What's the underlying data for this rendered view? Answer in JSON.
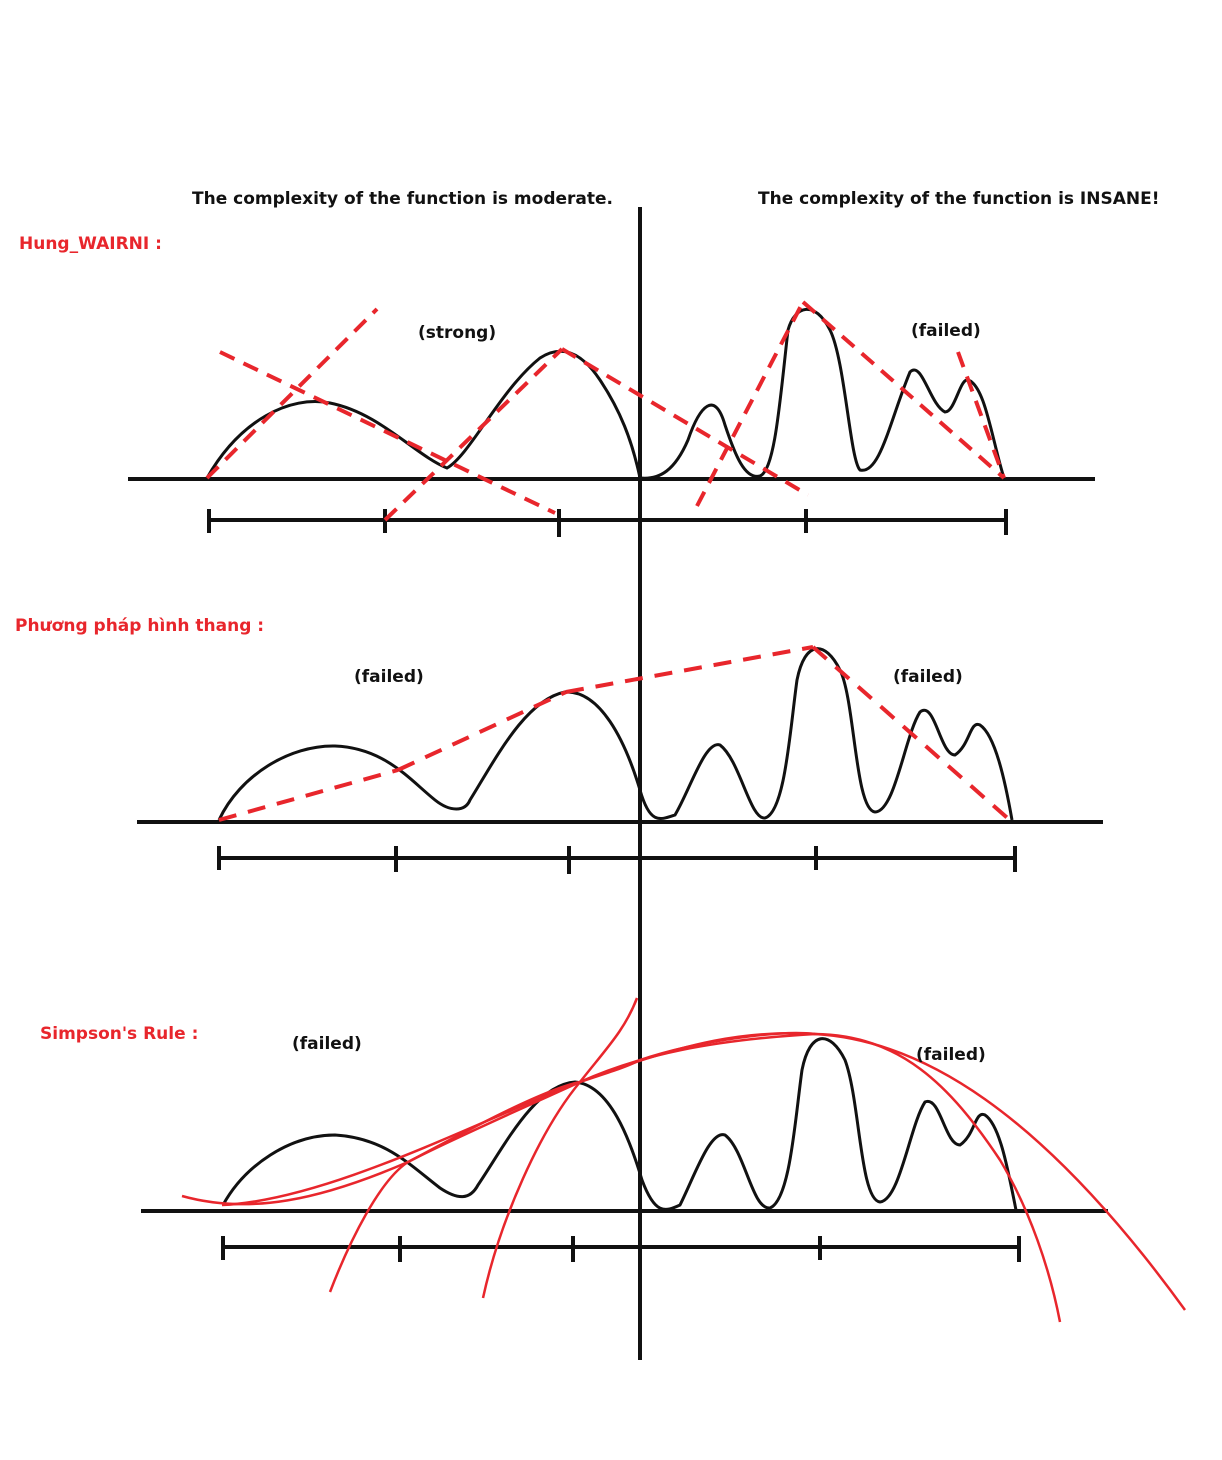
{
  "headers": {
    "left": "The complexity of the function is moderate.",
    "right": "The complexity of the function is INSANE!"
  },
  "methods": [
    {
      "name": "Hung_WAIRNI :",
      "verdict_left": "(strong)",
      "verdict_right": "(failed)"
    },
    {
      "name": "Phương pháp hình thang :",
      "verdict_left": "(failed)",
      "verdict_right": "(failed)"
    },
    {
      "name": "Simpson's Rule :",
      "verdict_left": "(failed)",
      "verdict_right": "(failed)"
    }
  ],
  "colors": {
    "curve": "#111111",
    "approx": "#e8262c",
    "label_method": "#e8262c",
    "text": "#111111"
  }
}
